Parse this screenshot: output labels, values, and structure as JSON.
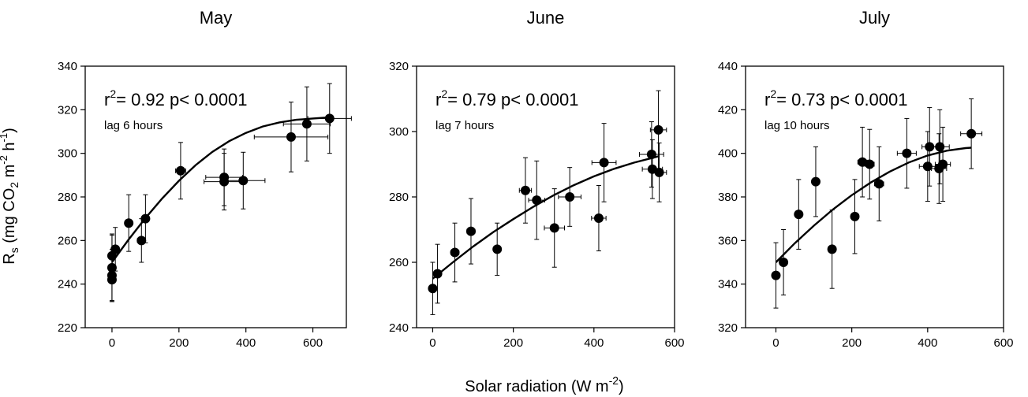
{
  "figure": {
    "xlabel_main": "Solar radiation (W m",
    "xlabel_sup": "-2",
    "xlabel_end": ")",
    "ylabel": {
      "r": "R",
      "s": "s",
      "open": " (mg CO",
      "two": "2",
      "m": " m",
      "msup": "-2",
      "h": " h",
      "hsup": "-1",
      "close": ")"
    }
  },
  "chart_data": [
    {
      "type": "scatter",
      "title": "May",
      "stat_prefix": "r",
      "stat_sup": "2",
      "stat_rest": "= 0.92 p< 0.0001",
      "lag": "lag 6 hours",
      "xlim": [
        -80,
        700
      ],
      "ylim": [
        220,
        340
      ],
      "xticks": [
        0,
        200,
        400,
        600
      ],
      "yticks": [
        220,
        240,
        260,
        280,
        300,
        320,
        340
      ],
      "points": [
        {
          "x": 0,
          "y": 242,
          "xerr": 3,
          "yerr": 10
        },
        {
          "x": 0,
          "y": 244,
          "xerr": 3,
          "yerr": 12
        },
        {
          "x": 0,
          "y": 247.5,
          "xerr": 3,
          "yerr": 15
        },
        {
          "x": 0,
          "y": 253,
          "xerr": 3,
          "yerr": 10
        },
        {
          "x": 10,
          "y": 256,
          "xerr": 6,
          "yerr": 10
        },
        {
          "x": 50,
          "y": 268,
          "xerr": 10,
          "yerr": 13
        },
        {
          "x": 88,
          "y": 260,
          "xerr": 12,
          "yerr": 10
        },
        {
          "x": 100,
          "y": 270,
          "xerr": 10,
          "yerr": 11
        },
        {
          "x": 205,
          "y": 292,
          "xerr": 15,
          "yerr": 13
        },
        {
          "x": 335,
          "y": 289,
          "xerr": 55,
          "yerr": 13
        },
        {
          "x": 335,
          "y": 287,
          "xerr": 60,
          "yerr": 13
        },
        {
          "x": 392,
          "y": 287.5,
          "xerr": 65,
          "yerr": 13
        },
        {
          "x": 535,
          "y": 307.5,
          "xerr": 110,
          "yerr": 16
        },
        {
          "x": 582,
          "y": 313.5,
          "xerr": 70,
          "yerr": 17
        },
        {
          "x": 650,
          "y": 316,
          "xerr": 65,
          "yerr": 16
        }
      ],
      "fit": [
        [
          0,
          250
        ],
        [
          50,
          260.5
        ],
        [
          100,
          270.3
        ],
        [
          150,
          279.3
        ],
        [
          200,
          287.4
        ],
        [
          250,
          294.6
        ],
        [
          300,
          300.7
        ],
        [
          350,
          305.6
        ],
        [
          400,
          309.4
        ],
        [
          450,
          312.3
        ],
        [
          500,
          314.2
        ],
        [
          550,
          315.4
        ],
        [
          600,
          316
        ],
        [
          650,
          316.5
        ]
      ]
    },
    {
      "type": "scatter",
      "title": "June",
      "stat_prefix": "r",
      "stat_sup": "2",
      "stat_rest": "= 0.79  p< 0.0001",
      "lag": "lag 7 hours",
      "xlim": [
        -40,
        600
      ],
      "ylim": [
        240,
        320
      ],
      "xticks": [
        0,
        200,
        400,
        600
      ],
      "yticks": [
        240,
        260,
        280,
        300,
        320
      ],
      "points": [
        {
          "x": 0,
          "y": 252,
          "xerr": 4,
          "yerr": 8
        },
        {
          "x": 12,
          "y": 256.5,
          "xerr": 6,
          "yerr": 9
        },
        {
          "x": 55,
          "y": 263,
          "xerr": 10,
          "yerr": 9
        },
        {
          "x": 95,
          "y": 269.5,
          "xerr": 10,
          "yerr": 10
        },
        {
          "x": 160,
          "y": 264,
          "xerr": 8,
          "yerr": 8
        },
        {
          "x": 230,
          "y": 282,
          "xerr": 15,
          "yerr": 10
        },
        {
          "x": 258,
          "y": 279,
          "xerr": 20,
          "yerr": 12
        },
        {
          "x": 302,
          "y": 270.5,
          "xerr": 25,
          "yerr": 12
        },
        {
          "x": 340,
          "y": 280,
          "xerr": 28,
          "yerr": 9
        },
        {
          "x": 412,
          "y": 273.5,
          "xerr": 18,
          "yerr": 10
        },
        {
          "x": 425,
          "y": 290.5,
          "xerr": 30,
          "yerr": 12
        },
        {
          "x": 543,
          "y": 293,
          "xerr": 30,
          "yerr": 10
        },
        {
          "x": 545,
          "y": 288.5,
          "xerr": 25,
          "yerr": 9
        },
        {
          "x": 560,
          "y": 300.5,
          "xerr": 20,
          "yerr": 12
        },
        {
          "x": 562,
          "y": 287.5,
          "xerr": 18,
          "yerr": 9
        }
      ],
      "fit": [
        [
          0,
          255
        ],
        [
          50,
          260
        ],
        [
          100,
          264.8
        ],
        [
          150,
          269.2
        ],
        [
          200,
          273.2
        ],
        [
          250,
          277
        ],
        [
          300,
          280.5
        ],
        [
          350,
          283.6
        ],
        [
          400,
          286.3
        ],
        [
          450,
          288.6
        ],
        [
          500,
          290.5
        ],
        [
          550,
          292.1
        ],
        [
          562,
          292.5
        ]
      ]
    },
    {
      "type": "scatter",
      "title": "July",
      "stat_prefix": "r",
      "stat_sup": "2",
      "stat_rest": "= 0.73  p< 0.0001",
      "lag": "lag 10 hours",
      "xlim": [
        -80,
        600
      ],
      "ylim": [
        320,
        440
      ],
      "xticks": [
        0,
        200,
        400,
        600
      ],
      "yticks": [
        320,
        340,
        360,
        380,
        400,
        420,
        440
      ],
      "points": [
        {
          "x": 0,
          "y": 344,
          "xerr": 4,
          "yerr": 15
        },
        {
          "x": 20,
          "y": 350,
          "xerr": 6,
          "yerr": 15
        },
        {
          "x": 60,
          "y": 372,
          "xerr": 8,
          "yerr": 16
        },
        {
          "x": 105,
          "y": 387,
          "xerr": 8,
          "yerr": 16
        },
        {
          "x": 148,
          "y": 356,
          "xerr": 10,
          "yerr": 18
        },
        {
          "x": 208,
          "y": 371,
          "xerr": 10,
          "yerr": 17
        },
        {
          "x": 228,
          "y": 396,
          "xerr": 12,
          "yerr": 16
        },
        {
          "x": 247,
          "y": 395,
          "xerr": 12,
          "yerr": 16
        },
        {
          "x": 272,
          "y": 386,
          "xerr": 12,
          "yerr": 17
        },
        {
          "x": 345,
          "y": 400,
          "xerr": 25,
          "yerr": 16
        },
        {
          "x": 400,
          "y": 394,
          "xerr": 22,
          "yerr": 16
        },
        {
          "x": 405,
          "y": 403,
          "xerr": 20,
          "yerr": 18
        },
        {
          "x": 430,
          "y": 393,
          "xerr": 20,
          "yerr": 16
        },
        {
          "x": 432,
          "y": 403,
          "xerr": 25,
          "yerr": 17
        },
        {
          "x": 440,
          "y": 395,
          "xerr": 20,
          "yerr": 17
        },
        {
          "x": 515,
          "y": 409,
          "xerr": 28,
          "yerr": 16
        }
      ],
      "fit": [
        [
          0,
          350
        ],
        [
          50,
          358.8
        ],
        [
          100,
          366.8
        ],
        [
          150,
          374.2
        ],
        [
          200,
          380.8
        ],
        [
          250,
          386.6
        ],
        [
          300,
          391.6
        ],
        [
          350,
          395.8
        ],
        [
          400,
          399
        ],
        [
          450,
          401.2
        ],
        [
          500,
          402.4
        ],
        [
          515,
          402.6
        ]
      ]
    }
  ]
}
